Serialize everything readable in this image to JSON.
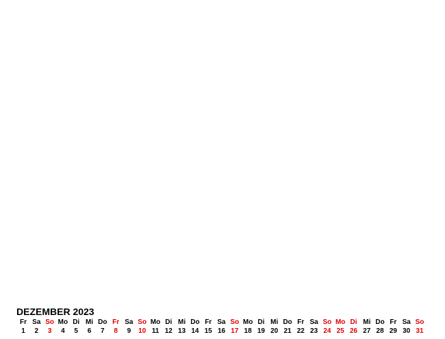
{
  "title": "DEZEMBER 2023",
  "holiday_color": "#e00000",
  "days": [
    {
      "wd": "Fr",
      "d": "1",
      "red": false
    },
    {
      "wd": "Sa",
      "d": "2",
      "red": false
    },
    {
      "wd": "So",
      "d": "3",
      "red": true
    },
    {
      "wd": "Mo",
      "d": "4",
      "red": false
    },
    {
      "wd": "Di",
      "d": "5",
      "red": false
    },
    {
      "wd": "Mi",
      "d": "6",
      "red": false
    },
    {
      "wd": "Do",
      "d": "7",
      "red": false
    },
    {
      "wd": "Fr",
      "d": "8",
      "red": true
    },
    {
      "wd": "Sa",
      "d": "9",
      "red": false
    },
    {
      "wd": "So",
      "d": "10",
      "red": true
    },
    {
      "wd": "Mo",
      "d": "11",
      "red": false
    },
    {
      "wd": "Di",
      "d": "12",
      "red": false
    },
    {
      "wd": "Mi",
      "d": "13",
      "red": false
    },
    {
      "wd": "Do",
      "d": "14",
      "red": false
    },
    {
      "wd": "Fr",
      "d": "15",
      "red": false
    },
    {
      "wd": "Sa",
      "d": "16",
      "red": false
    },
    {
      "wd": "So",
      "d": "17",
      "red": true
    },
    {
      "wd": "Mo",
      "d": "18",
      "red": false
    },
    {
      "wd": "Di",
      "d": "19",
      "red": false
    },
    {
      "wd": "Mi",
      "d": "20",
      "red": false
    },
    {
      "wd": "Do",
      "d": "21",
      "red": false
    },
    {
      "wd": "Fr",
      "d": "22",
      "red": false
    },
    {
      "wd": "Sa",
      "d": "23",
      "red": false
    },
    {
      "wd": "So",
      "d": "24",
      "red": true
    },
    {
      "wd": "Mo",
      "d": "25",
      "red": true
    },
    {
      "wd": "Di",
      "d": "26",
      "red": true
    },
    {
      "wd": "Mi",
      "d": "27",
      "red": false
    },
    {
      "wd": "Do",
      "d": "28",
      "red": false
    },
    {
      "wd": "Fr",
      "d": "29",
      "red": false
    },
    {
      "wd": "Sa",
      "d": "30",
      "red": false
    },
    {
      "wd": "So",
      "d": "31",
      "red": true
    }
  ]
}
